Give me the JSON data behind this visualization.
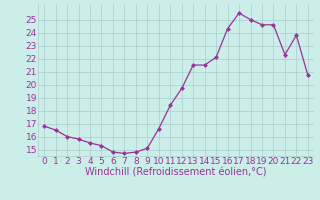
{
  "x": [
    0,
    1,
    2,
    3,
    4,
    5,
    6,
    7,
    8,
    9,
    10,
    11,
    12,
    13,
    14,
    15,
    16,
    17,
    18,
    19,
    20,
    21,
    22,
    23
  ],
  "y": [
    16.8,
    16.5,
    16.0,
    15.8,
    15.5,
    15.3,
    14.8,
    14.7,
    14.8,
    15.1,
    16.6,
    18.4,
    19.7,
    21.5,
    21.5,
    22.1,
    24.3,
    25.5,
    25.0,
    24.6,
    24.6,
    22.3,
    23.8,
    20.7
  ],
  "line_color": "#993399",
  "marker": "D",
  "marker_size": 2,
  "bg_color": "#cceee8",
  "grid_color": "#aacccc",
  "xlabel": "Windchill (Refroidissement éolien,°C)",
  "ylim": [
    14.5,
    26.2
  ],
  "yticks": [
    15,
    16,
    17,
    18,
    19,
    20,
    21,
    22,
    23,
    24,
    25
  ],
  "xticks": [
    0,
    1,
    2,
    3,
    4,
    5,
    6,
    7,
    8,
    9,
    10,
    11,
    12,
    13,
    14,
    15,
    16,
    17,
    18,
    19,
    20,
    21,
    22,
    23
  ],
  "tick_color": "#993399",
  "label_color": "#993399",
  "font_size": 6.5,
  "xlabel_size": 7
}
